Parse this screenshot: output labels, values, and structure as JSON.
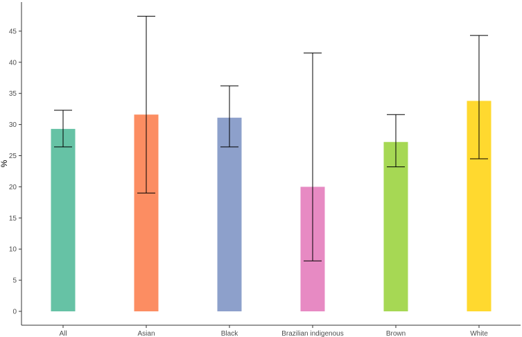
{
  "chart_data": {
    "type": "bar",
    "title": "",
    "xlabel": "",
    "ylabel": "%",
    "ylim": [
      0,
      50
    ],
    "yticks": [
      0,
      5,
      10,
      15,
      20,
      25,
      30,
      35,
      40,
      45
    ],
    "grid": false,
    "legend": "none",
    "categories": [
      "All",
      "Asian",
      "Black",
      "Brazilian indigenous",
      "Brown",
      "White"
    ],
    "values": [
      29.3,
      31.6,
      31.1,
      20.0,
      27.2,
      33.8
    ],
    "error_low": [
      26.4,
      19.0,
      26.4,
      8.1,
      23.2,
      24.5
    ],
    "error_high": [
      32.3,
      47.4,
      36.2,
      41.5,
      31.6,
      44.3
    ],
    "colors": [
      "#66c2a5",
      "#fc8d62",
      "#8da0cb",
      "#e78ac3",
      "#a6d854",
      "#ffd92f"
    ]
  }
}
